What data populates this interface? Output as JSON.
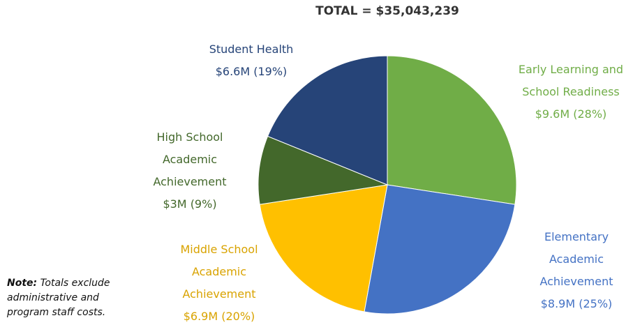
{
  "chart_data": {
    "type": "pie",
    "title": "TOTAL = $35,043,239",
    "categories": [
      "Early Learning and School Readiness",
      "Elementary Academic Achievement",
      "Middle School Academic Achievement",
      "High School Academic Achievement",
      "Student Health"
    ],
    "values": [
      9600000,
      8900000,
      6900000,
      3000000,
      6600000
    ],
    "value_labels": [
      "$9.6M (28%)",
      "$8.9M (25%)",
      "$6.9M (20%)",
      "$3M (9%)",
      "$6.6M (19%)"
    ],
    "colors": [
      "#70ad47",
      "#4472c4",
      "#ffc000",
      "#43682b",
      "#264478"
    ],
    "note": {
      "label": "Note:",
      "text": "Totals exclude administrative and program staff costs."
    }
  }
}
